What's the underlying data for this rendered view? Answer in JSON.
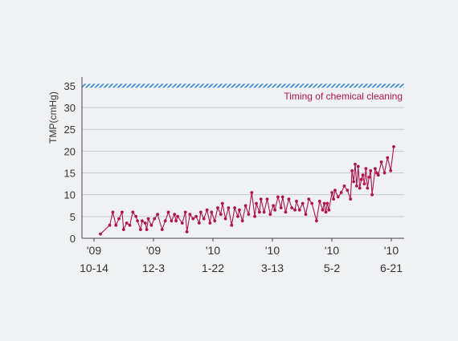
{
  "chart_data": {
    "type": "line",
    "title": "",
    "ylabel": "TMP(cmHg)",
    "xlabel": "",
    "ylim": [
      0,
      37
    ],
    "yticks": [
      0,
      5,
      10,
      15,
      20,
      25,
      30,
      35
    ],
    "grid": true,
    "x_ticks": [
      {
        "year": "'09",
        "date": "10-14"
      },
      {
        "year": "'09",
        "date": "12-3"
      },
      {
        "year": "'10",
        "date": "1-22"
      },
      {
        "year": "'10",
        "date": "3-13"
      },
      {
        "year": "'10",
        "date": "5-2"
      },
      {
        "year": "'10",
        "date": "6-21"
      }
    ],
    "threshold": {
      "value": 35,
      "label": "Timing of chemical cleaning"
    },
    "colors": {
      "series": "#b0134e",
      "threshold": "#4a8fd6",
      "threshold_label": "#b0134e"
    },
    "series": [
      {
        "x": [
          0,
          6,
          8,
          10,
          12,
          14,
          15,
          17,
          19,
          21,
          23,
          24,
          26,
          27,
          29,
          30,
          31,
          33,
          35,
          37,
          40,
          42,
          44,
          46,
          48,
          49,
          50,
          53,
          55,
          56,
          58,
          60,
          62,
          64,
          65,
          67,
          69,
          71,
          72,
          74,
          76,
          78,
          79,
          81,
          83,
          85,
          87,
          89,
          90,
          92,
          94,
          96,
          98,
          100,
          101,
          103,
          104,
          106,
          108,
          110,
          112,
          113,
          115,
          117,
          118,
          120,
          122,
          124,
          126,
          127,
          129,
          131,
          133,
          135,
          137,
          140,
          142,
          144,
          145,
          146,
          147,
          148,
          150,
          151,
          152,
          154,
          156,
          158,
          160,
          162,
          163,
          164,
          165,
          166,
          167,
          168,
          169,
          170,
          171,
          172,
          173,
          174,
          175,
          176,
          178,
          179,
          180,
          182,
          184,
          186,
          188,
          190
        ],
        "y": [
          1,
          3,
          6,
          3,
          4.5,
          6,
          2,
          3.5,
          3,
          6,
          5,
          4,
          2,
          4,
          3.5,
          2,
          4.5,
          3,
          4.5,
          5.5,
          2,
          4,
          6,
          4,
          5.5,
          4,
          5,
          3.5,
          6,
          1.5,
          5.5,
          4.5,
          5,
          3.5,
          6,
          4.5,
          6.5,
          3.5,
          6,
          4,
          7,
          5.5,
          8,
          4.5,
          7,
          3,
          7,
          5,
          6.5,
          4,
          7.5,
          5.5,
          10.5,
          5,
          8,
          6,
          9,
          6,
          9,
          5.5,
          7.5,
          6.5,
          9.5,
          7,
          9.5,
          6,
          9,
          7,
          6.5,
          8.5,
          6.5,
          8,
          5.5,
          9,
          8,
          4,
          8.5,
          6.5,
          8,
          6,
          8,
          6.5,
          10.5,
          9,
          11,
          9.5,
          10.5,
          12,
          11,
          9,
          15.5,
          13,
          17,
          12,
          16.5,
          11.5,
          13.5,
          14.5,
          12.5,
          16,
          11.5,
          14,
          15.5,
          10,
          16,
          15,
          14.5,
          17.5,
          15,
          18.5,
          15.5,
          21
        ]
      }
    ]
  }
}
